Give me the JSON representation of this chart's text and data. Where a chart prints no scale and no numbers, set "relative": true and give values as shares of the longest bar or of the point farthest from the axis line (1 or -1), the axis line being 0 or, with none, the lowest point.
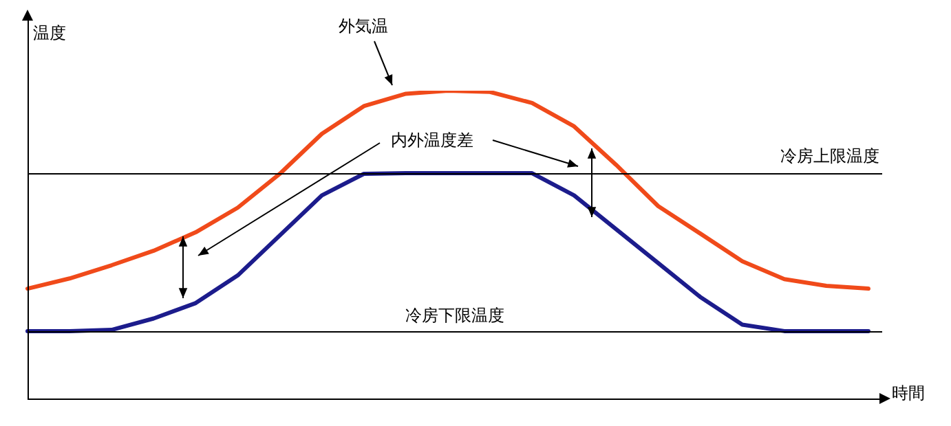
{
  "chart_data": {
    "type": "line",
    "relative": true,
    "xlabel": "時間",
    "ylabel": "温度",
    "categories": [
      null,
      null,
      null,
      null,
      null,
      null,
      null,
      null,
      null,
      null,
      null,
      null,
      null,
      null,
      null,
      null,
      null,
      null,
      null,
      null,
      null
    ],
    "series": [
      {
        "color": "#f04a1a",
        "values": [
          0.357,
          0.39,
          0.433,
          0.48,
          0.54,
          0.62,
          0.73,
          0.86,
          0.95,
          0.99,
          1,
          0.996,
          0.96,
          0.884,
          0.759,
          0.625,
          0.536,
          0.446,
          0.388,
          0.366,
          0.357
        ]
      },
      {
        "color": "#1c1c8c",
        "values": [
          0.219,
          0.219,
          0.223,
          0.26,
          0.31,
          0.4,
          0.53,
          0.66,
          0.73,
          0.732,
          0.732,
          0.732,
          0.732,
          0.66,
          0.55,
          0.44,
          0.33,
          0.24,
          0.219,
          0.219,
          0.219
        ]
      }
    ],
    "ref_lines": [
      {
        "axis": "y",
        "value": 0.73,
        "label": "冷房上限温度",
        "color": "#000000"
      },
      {
        "axis": "y",
        "value": 0.219,
        "label": "冷房下限温度",
        "color": "#000000"
      }
    ],
    "annotations": [
      "外気温",
      "内外温度差"
    ],
    "marker": "none",
    "legend": false
  }
}
